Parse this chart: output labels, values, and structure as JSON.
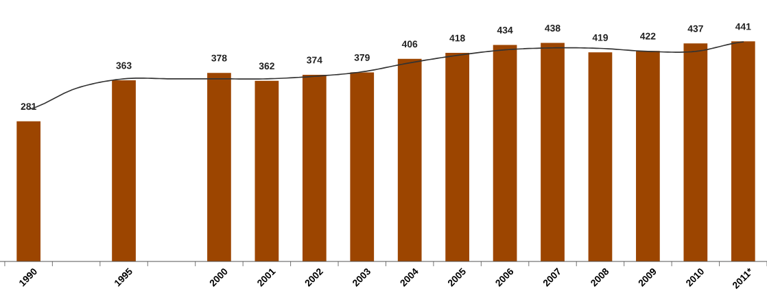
{
  "chart_data": {
    "type": "bar",
    "categories": [
      "1990",
      null,
      "1995",
      null,
      "2000",
      "2001",
      "2002",
      "2003",
      "2004",
      "2005",
      "2006",
      "2007",
      "2008",
      "2009",
      "2010",
      "2011*"
    ],
    "series": [
      {
        "color": "#9c4500",
        "values": [
          281,
          null,
          363,
          null,
          378,
          362,
          374,
          379,
          406,
          418,
          434,
          438,
          419,
          422,
          437,
          441
        ],
        "value_labels": [
          "281",
          null,
          "363",
          null,
          "378",
          "362",
          "374",
          "379",
          "406",
          "418",
          "434",
          "438",
          "419",
          "422",
          "437",
          "441"
        ]
      },
      {
        "type": "line",
        "color": "#333333",
        "values": [
          305,
          347,
          366,
          366,
          366,
          366,
          371,
          380,
          398,
          413,
          424,
          428,
          427,
          421,
          421,
          440
        ]
      }
    ],
    "tick_labels": "x"
  }
}
